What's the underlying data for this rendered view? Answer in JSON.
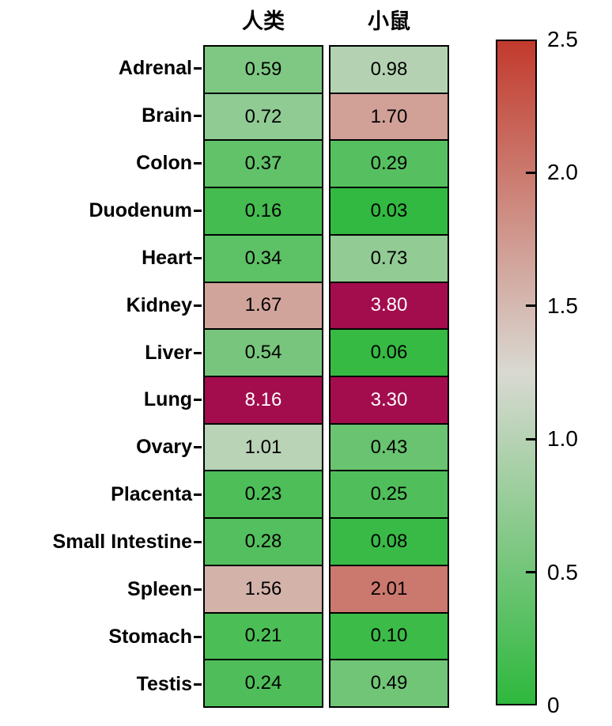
{
  "chart_data": {
    "type": "heatmap",
    "title": "",
    "columns": [
      "人类",
      "小鼠"
    ],
    "rows": [
      "Adrenal",
      "Brain",
      "Colon",
      "Duodenum",
      "Heart",
      "Kidney",
      "Liver",
      "Lung",
      "Ovary",
      "Placenta",
      "Small Intestine",
      "Spleen",
      "Stomach",
      "Testis"
    ],
    "series": [
      {
        "name": "人类",
        "values": [
          0.59,
          0.72,
          0.37,
          0.16,
          0.34,
          1.67,
          0.54,
          8.16,
          1.01,
          0.23,
          0.28,
          1.56,
          0.21,
          0.24
        ]
      },
      {
        "name": "小鼠",
        "values": [
          0.98,
          1.7,
          0.29,
          0.03,
          0.73,
          3.8,
          0.06,
          3.3,
          0.43,
          0.25,
          0.08,
          2.01,
          0.1,
          0.49
        ]
      }
    ],
    "value_decimals": 2,
    "colorbar": {
      "min": 0,
      "max": 2.5,
      "midpoint": 1.25,
      "tick_labels": [
        "2.5",
        "2.0",
        "1.5",
        "1.0",
        "0.5",
        "0"
      ],
      "tick_values": [
        2.5,
        2.0,
        1.5,
        1.0,
        0.5,
        0
      ],
      "inner_tick_values": [
        2.0,
        1.5,
        1.0,
        0.5
      ],
      "colors": {
        "low": "#2eb83d",
        "mid": "#d9d9d2",
        "high": "#c23a2d",
        "over": "#a30d4e",
        "text_normal": "#000000",
        "text_over": "#ffffff"
      },
      "legend_position": "right"
    },
    "grid": "off"
  }
}
